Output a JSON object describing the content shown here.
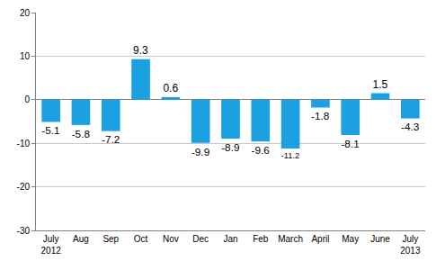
{
  "chart_data": {
    "type": "bar",
    "categories": [
      "July\n2012",
      "Aug",
      "Sep",
      "Oct",
      "Nov",
      "Dec",
      "Jan",
      "Feb",
      "March",
      "April",
      "May",
      "June",
      "July\n2013"
    ],
    "values": [
      -5.1,
      -5.8,
      -7.2,
      9.3,
      0.6,
      -9.9,
      -8.9,
      -9.6,
      -11.2,
      -1.8,
      -8.1,
      1.5,
      -4.3
    ],
    "color": "#1ba1e2",
    "ylim": [
      -30,
      20
    ],
    "yticks": [
      -30,
      -20,
      -10,
      0,
      10,
      20
    ],
    "grid": true,
    "data_labels": true
  }
}
